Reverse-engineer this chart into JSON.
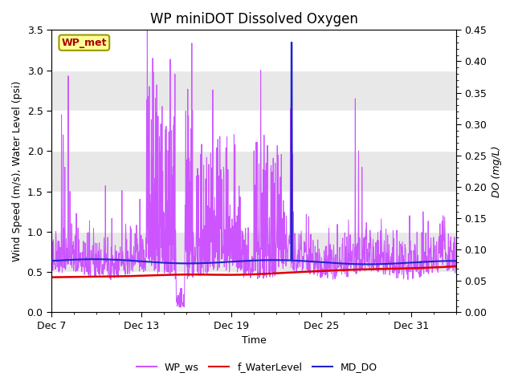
{
  "title": "WP miniDOT Dissolved Oxygen",
  "ylabel_left": "Wind Speed (m/s), Water Level (psi)",
  "ylabel_right": "DO (mg/L)",
  "xlabel": "Time",
  "ylim_left": [
    0.0,
    3.5
  ],
  "ylim_right": [
    0.0,
    0.45
  ],
  "yticks_left": [
    0.0,
    0.5,
    1.0,
    1.5,
    2.0,
    2.5,
    3.0,
    3.5
  ],
  "yticks_right": [
    0.0,
    0.05,
    0.1,
    0.15,
    0.2,
    0.25,
    0.3,
    0.35,
    0.4,
    0.45
  ],
  "xticklabels": [
    "Dec 7",
    "Dec 13",
    "Dec 19",
    "Dec 25",
    "Dec 31"
  ],
  "xtick_days": [
    0,
    6,
    12,
    18,
    24
  ],
  "total_days": 27,
  "wp_ws_color": "#CC55FF",
  "f_waterlevel_color": "#DD0000",
  "md_do_color": "#2222CC",
  "background_color": "#FFFFFF",
  "band_color_dark": "#DCDCDC",
  "band_color_light": "#EBEBEB",
  "annotation_box_color": "#FFFF99",
  "annotation_text": "WP_met",
  "annotation_text_color": "#AA0000",
  "annotation_border_color": "#999900",
  "legend_items": [
    "WP_ws",
    "f_WaterLevel",
    "MD_DO"
  ],
  "title_fontsize": 12,
  "label_fontsize": 9,
  "tick_fontsize": 9,
  "legend_fontsize": 9
}
